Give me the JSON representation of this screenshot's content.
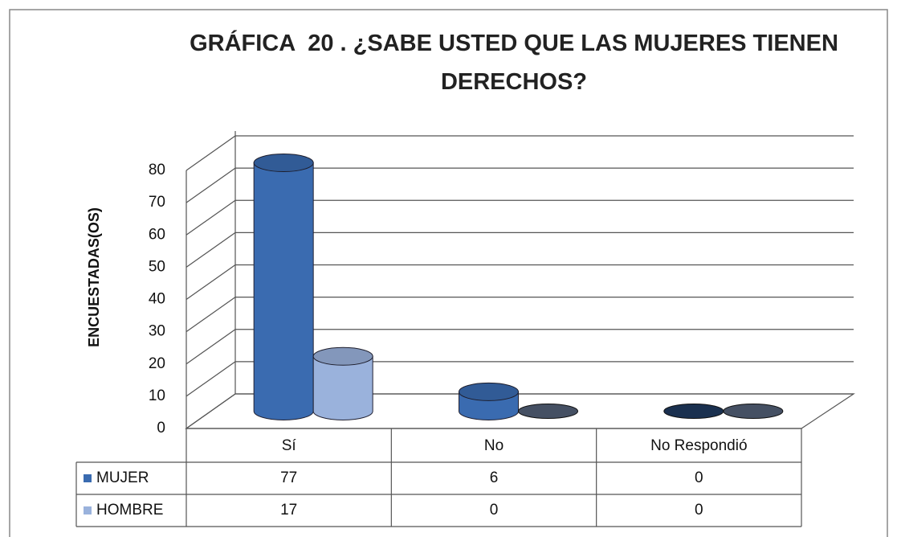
{
  "chart_data": {
    "type": "bar3d",
    "title": "GRÁFICA  20 . ¿SABE USTED QUE LAS MUJERES TIENEN DERECHOS?",
    "y_label": "ENCUESTADAS(OS)",
    "categories": [
      "Sí",
      "No",
      "No Respondió"
    ],
    "series": [
      {
        "name": "MUJER",
        "color": "#3a6bb0",
        "values": [
          77,
          6,
          0
        ]
      },
      {
        "name": "HOMBRE",
        "color": "#9ab2dc",
        "values": [
          17,
          0,
          0
        ]
      }
    ],
    "ylim": [
      0,
      80
    ],
    "yticks": [
      0,
      10,
      20,
      30,
      40,
      50,
      60,
      70,
      80
    ],
    "grid": true
  }
}
